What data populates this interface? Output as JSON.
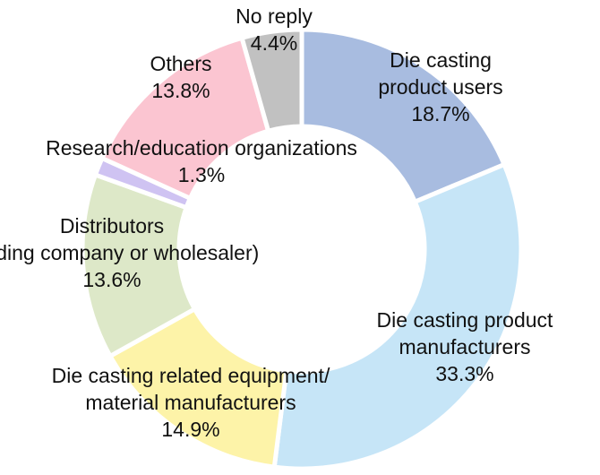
{
  "chart_data": {
    "type": "pie",
    "variant": "donut",
    "title": "",
    "legend": "none",
    "start_angle_deg": 0,
    "direction": "clockwise",
    "slices": [
      {
        "label_lines": [
          "Die casting",
          "product users"
        ],
        "value": 18.7,
        "value_text": "18.7%",
        "color": "#a8bce0"
      },
      {
        "label_lines": [
          "Die casting product",
          "manufacturers"
        ],
        "value": 33.3,
        "value_text": "33.3%",
        "color": "#c6e5f7"
      },
      {
        "label_lines": [
          "Die casting related equipment/",
          "material manufacturers"
        ],
        "value": 14.9,
        "value_text": "14.9%",
        "color": "#fdf3a8"
      },
      {
        "label_lines": [
          "Distributors",
          "(trading company or wholesaler)"
        ],
        "value": 13.6,
        "value_text": "13.6%",
        "color": "#dde8c8"
      },
      {
        "label_lines": [
          "Research/education organizations"
        ],
        "value": 1.3,
        "value_text": "1.3%",
        "color": "#cfc3f2"
      },
      {
        "label_lines": [
          "Others"
        ],
        "value": 13.8,
        "value_text": "13.8%",
        "color": "#fbc5d1"
      },
      {
        "label_lines": [
          "No reply"
        ],
        "value": 4.4,
        "value_text": "4.4%",
        "color": "#c1c1c1"
      }
    ]
  }
}
